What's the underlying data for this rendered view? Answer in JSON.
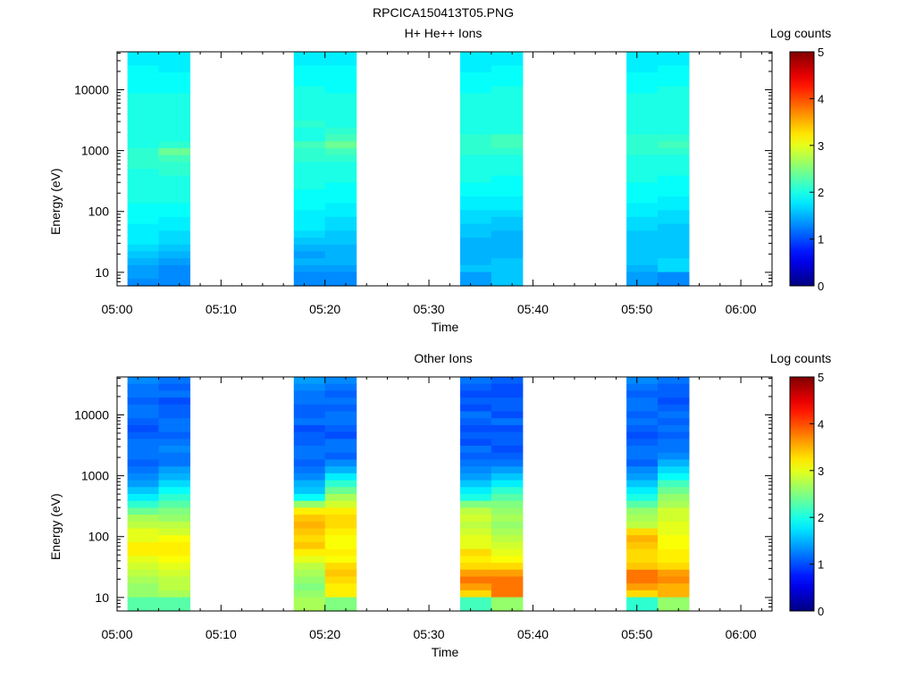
{
  "figure": {
    "title": "RPCICA150413T05.PNG"
  },
  "chart_data": [
    {
      "type": "heatmap",
      "title": "H+ He++ Ions",
      "xlabel": "Time",
      "ylabel": "Energy (eV)",
      "x_tick_labels": [
        "05:00",
        "05:10",
        "05:20",
        "05:30",
        "05:40",
        "05:50",
        "06:00"
      ],
      "y_tick_labels": [
        "10",
        "100",
        "1000",
        "10000"
      ],
      "y_scale": "log",
      "ylim": [
        6,
        42000
      ],
      "xlim": [
        "05:00",
        "06:03"
      ],
      "colorbar": {
        "label": "Log counts",
        "ticks": [
          "0",
          "1",
          "2",
          "3",
          "4",
          "5"
        ],
        "range": [
          0,
          5
        ],
        "colormap": "jet"
      },
      "time_blocks": [
        {
          "start": "05:01",
          "end": "05:04",
          "profile": [
            1.8,
            1.8,
            1.9,
            1.9,
            1.9,
            1.9,
            2.0,
            2.0,
            2.0,
            2.0,
            2.0,
            2.0,
            2.0,
            2.0,
            2.1,
            2.1,
            2.1,
            2.0,
            2.0,
            2.0,
            2.0,
            2.0,
            1.9,
            1.9,
            1.9,
            1.8,
            1.8,
            1.8,
            1.7,
            1.6,
            1.5,
            1.4,
            1.4,
            1.3
          ]
        },
        {
          "start": "05:04",
          "end": "05:07",
          "profile": [
            1.8,
            1.8,
            1.8,
            1.9,
            1.9,
            1.9,
            2.0,
            2.0,
            2.0,
            2.0,
            2.0,
            2.0,
            2.0,
            2.1,
            2.4,
            2.2,
            2.1,
            2.1,
            2.0,
            2.0,
            2.0,
            2.0,
            1.9,
            1.9,
            1.8,
            1.8,
            1.7,
            1.7,
            1.6,
            1.5,
            1.4,
            1.3,
            1.3,
            1.3
          ]
        },
        {
          "start": "05:17",
          "end": "05:20",
          "profile": [
            1.8,
            1.8,
            1.9,
            1.9,
            1.9,
            2.0,
            2.0,
            2.0,
            2.0,
            2.0,
            2.1,
            2.0,
            2.0,
            2.2,
            2.1,
            2.1,
            2.0,
            2.0,
            2.0,
            2.0,
            1.9,
            1.9,
            1.9,
            1.8,
            1.8,
            1.8,
            1.7,
            1.6,
            1.5,
            1.4,
            1.5,
            1.4,
            1.3,
            1.3
          ]
        },
        {
          "start": "05:20",
          "end": "05:23",
          "profile": [
            1.8,
            1.8,
            1.9,
            1.9,
            1.9,
            1.9,
            2.0,
            2.0,
            2.0,
            2.0,
            2.0,
            2.1,
            2.2,
            2.4,
            2.2,
            2.1,
            2.0,
            2.0,
            2.0,
            1.9,
            1.9,
            1.9,
            1.8,
            1.8,
            1.7,
            1.7,
            1.6,
            1.6,
            1.5,
            1.5,
            1.5,
            1.4,
            1.3,
            1.3
          ]
        },
        {
          "start": "05:33",
          "end": "05:36",
          "profile": [
            1.8,
            1.8,
            1.8,
            1.9,
            1.9,
            1.9,
            2.0,
            2.0,
            2.0,
            2.0,
            2.0,
            2.0,
            2.1,
            2.1,
            2.1,
            2.0,
            2.0,
            2.0,
            2.0,
            1.9,
            1.9,
            1.8,
            1.8,
            1.7,
            1.7,
            1.6,
            1.6,
            1.5,
            1.5,
            1.5,
            1.5,
            1.6,
            1.4,
            1.4
          ]
        },
        {
          "start": "05:36",
          "end": "05:39",
          "profile": [
            1.8,
            1.8,
            1.9,
            1.9,
            1.9,
            2.0,
            2.0,
            2.0,
            2.0,
            2.0,
            2.0,
            2.0,
            2.2,
            2.2,
            2.1,
            2.0,
            2.0,
            2.0,
            1.9,
            1.9,
            1.9,
            1.8,
            1.8,
            1.7,
            1.6,
            1.6,
            1.5,
            1.5,
            1.5,
            1.5,
            1.6,
            1.6,
            1.6,
            1.6
          ]
        },
        {
          "start": "05:49",
          "end": "05:52",
          "profile": [
            1.8,
            1.8,
            1.8,
            1.9,
            1.9,
            1.9,
            2.0,
            2.0,
            2.0,
            2.0,
            2.0,
            2.0,
            2.1,
            2.1,
            2.1,
            2.0,
            2.0,
            2.0,
            2.0,
            1.9,
            1.9,
            1.9,
            1.8,
            1.8,
            1.7,
            1.7,
            1.6,
            1.6,
            1.6,
            1.6,
            1.6,
            1.5,
            1.4,
            1.4
          ]
        },
        {
          "start": "05:52",
          "end": "05:55",
          "profile": [
            1.8,
            1.8,
            1.9,
            1.9,
            1.9,
            2.0,
            2.0,
            2.0,
            2.0,
            2.0,
            2.0,
            2.0,
            2.1,
            2.2,
            2.1,
            2.0,
            2.0,
            2.0,
            1.9,
            1.9,
            1.9,
            1.8,
            1.8,
            1.7,
            1.7,
            1.6,
            1.6,
            1.6,
            1.6,
            1.6,
            1.7,
            1.7,
            1.3,
            1.3
          ]
        }
      ]
    },
    {
      "type": "heatmap",
      "title": "Other Ions",
      "xlabel": "Time",
      "ylabel": "Energy (eV)",
      "x_tick_labels": [
        "05:00",
        "05:10",
        "05:20",
        "05:30",
        "05:40",
        "05:50",
        "06:00"
      ],
      "y_tick_labels": [
        "10",
        "100",
        "1000",
        "10000"
      ],
      "y_scale": "log",
      "ylim": [
        6,
        42000
      ],
      "xlim": [
        "05:00",
        "06:03"
      ],
      "colorbar": {
        "label": "Log counts",
        "ticks": [
          "0",
          "1",
          "2",
          "3",
          "4",
          "5"
        ],
        "range": [
          0,
          5
        ],
        "colormap": "jet"
      },
      "time_blocks": [
        {
          "start": "05:01",
          "end": "05:04",
          "profile": [
            1.3,
            1.2,
            1.2,
            1.1,
            1.2,
            1.2,
            1.1,
            1.0,
            1.1,
            1.2,
            1.2,
            1.2,
            1.1,
            1.2,
            1.3,
            1.4,
            1.6,
            1.8,
            2.1,
            2.4,
            2.7,
            2.8,
            3.0,
            3.0,
            3.2,
            3.2,
            3.0,
            2.9,
            2.8,
            2.7,
            2.6,
            2.6,
            2.3,
            2.3
          ]
        },
        {
          "start": "05:04",
          "end": "05:07",
          "profile": [
            1.2,
            1.1,
            1.2,
            1.0,
            1.1,
            1.1,
            1.2,
            1.2,
            1.1,
            1.2,
            1.3,
            1.2,
            1.2,
            1.4,
            1.5,
            1.7,
            1.9,
            2.1,
            2.3,
            2.5,
            2.6,
            2.8,
            2.9,
            3.1,
            3.2,
            3.2,
            3.1,
            3.0,
            2.9,
            2.8,
            2.8,
            2.7,
            2.3,
            2.3
          ]
        },
        {
          "start": "05:17",
          "end": "05:20",
          "profile": [
            1.4,
            1.3,
            1.2,
            1.2,
            1.1,
            1.1,
            1.2,
            1.0,
            1.1,
            1.1,
            1.2,
            1.2,
            1.1,
            1.2,
            1.3,
            1.5,
            1.6,
            1.9,
            2.6,
            3.2,
            3.4,
            3.5,
            3.4,
            3.3,
            3.4,
            3.2,
            3.0,
            2.8,
            2.7,
            2.6,
            2.5,
            2.6,
            2.7,
            2.7
          ]
        },
        {
          "start": "05:20",
          "end": "05:23",
          "profile": [
            1.3,
            1.2,
            1.1,
            1.2,
            1.1,
            1.2,
            1.2,
            1.1,
            1.0,
            1.2,
            1.2,
            1.1,
            1.3,
            1.5,
            1.8,
            2.1,
            2.4,
            2.7,
            2.9,
            3.2,
            3.3,
            3.3,
            3.2,
            3.1,
            3.1,
            3.2,
            3.1,
            3.3,
            3.4,
            3.3,
            3.2,
            3.2,
            2.5,
            2.5
          ]
        },
        {
          "start": "05:33",
          "end": "05:36",
          "profile": [
            1.2,
            1.1,
            1.0,
            1.1,
            1.0,
            1.2,
            1.1,
            1.0,
            1.1,
            1.0,
            1.2,
            1.1,
            1.2,
            1.3,
            1.4,
            1.6,
            1.8,
            2.0,
            2.5,
            2.8,
            2.9,
            2.8,
            2.9,
            3.0,
            3.0,
            3.3,
            3.2,
            3.3,
            3.6,
            3.8,
            3.6,
            3.3,
            2.2,
            2.2
          ]
        },
        {
          "start": "05:36",
          "end": "05:39",
          "profile": [
            1.1,
            1.0,
            1.0,
            1.1,
            1.1,
            1.0,
            1.2,
            1.0,
            1.1,
            1.1,
            1.0,
            1.1,
            1.2,
            1.4,
            1.6,
            1.8,
            2.1,
            2.3,
            2.5,
            2.6,
            2.7,
            2.6,
            2.7,
            2.8,
            2.9,
            3.0,
            3.1,
            3.3,
            3.6,
            3.8,
            3.8,
            3.8,
            2.6,
            2.6
          ]
        },
        {
          "start": "05:49",
          "end": "05:52",
          "profile": [
            1.3,
            1.2,
            1.1,
            1.2,
            1.2,
            1.1,
            1.2,
            1.1,
            1.0,
            1.1,
            1.2,
            1.2,
            1.1,
            1.3,
            1.4,
            1.6,
            1.8,
            2.0,
            2.3,
            2.6,
            2.7,
            2.8,
            3.3,
            3.5,
            3.4,
            3.3,
            3.3,
            3.4,
            3.8,
            3.8,
            3.6,
            3.3,
            2.1,
            2.1
          ]
        },
        {
          "start": "05:52",
          "end": "05:55",
          "profile": [
            1.2,
            1.1,
            1.1,
            1.0,
            1.1,
            1.2,
            1.1,
            1.2,
            1.1,
            1.2,
            1.2,
            1.3,
            1.5,
            1.7,
            1.9,
            2.2,
            2.4,
            2.6,
            2.7,
            2.9,
            2.9,
            3.0,
            3.0,
            3.1,
            3.1,
            3.2,
            3.2,
            3.3,
            3.6,
            3.7,
            3.5,
            3.5,
            2.6,
            2.6
          ]
        }
      ]
    }
  ]
}
